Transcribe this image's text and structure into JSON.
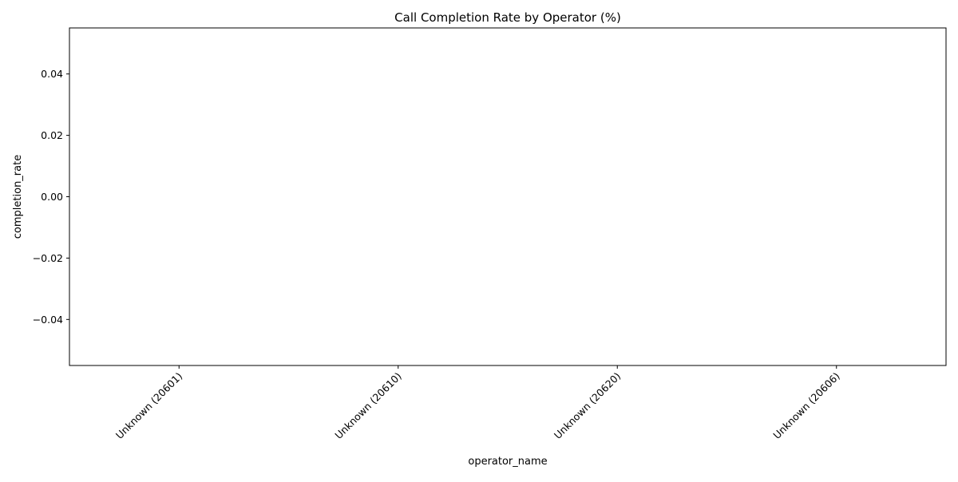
{
  "chart_data": {
    "type": "bar",
    "title": "Call Completion Rate by Operator (%)",
    "xlabel": "operator_name",
    "ylabel": "completion_rate",
    "categories": [
      "Unknown (20601)",
      "Unknown (20610)",
      "Unknown (20620)",
      "Unknown (20606)"
    ],
    "values": [
      0,
      0,
      0,
      0
    ],
    "ylim": [
      -0.055,
      0.055
    ],
    "yticks": [
      -0.04,
      -0.02,
      0.0,
      0.02,
      0.04
    ],
    "ytick_labels": [
      "−0.04",
      "−0.02",
      "0.00",
      "0.02",
      "0.04"
    ],
    "grid": false,
    "bar_color": "#1f77b4"
  }
}
